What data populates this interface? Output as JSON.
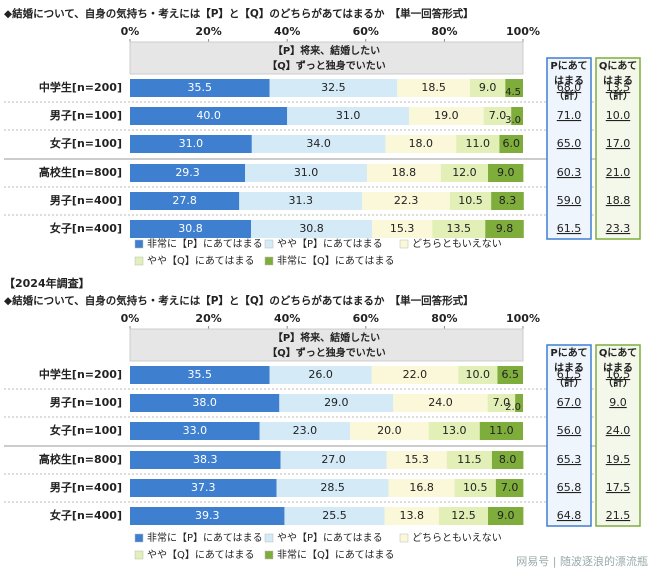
{
  "chart_data": [
    {
      "type": "bar",
      "stacked": true,
      "orientation": "horizontal",
      "title": "◆結婚について、自身の気持ち・考えには【P】と【Q】のどちらがあてはまるか　【単一回答形式】",
      "header": [
        "【P】将来、結婚したい",
        "【Q】ずっと独身でいたい"
      ],
      "categories": [
        "中学生[n=200]",
        "男子[n=100]",
        "女子[n=100]",
        "高校生[n=800]",
        "男子[n=400]",
        "女子[n=400]"
      ],
      "xlim": [
        0,
        100
      ],
      "xticks": [
        {
          "value": 0,
          "label": "0%"
        },
        {
          "value": 20,
          "label": "20%"
        },
        {
          "value": 40,
          "label": "40%"
        },
        {
          "value": 60,
          "label": "60%"
        },
        {
          "value": 80,
          "label": "80%"
        },
        {
          "value": 100,
          "label": "100%"
        }
      ],
      "series": [
        {
          "name": "非常に【P】にあてはまる",
          "color": "#3f7fd0",
          "values": [
            35.5,
            40.0,
            31.0,
            29.3,
            27.8,
            30.8
          ],
          "value_labels": [
            "35.5",
            "40.0",
            "31.0",
            "29.3",
            "27.8",
            "30.8"
          ]
        },
        {
          "name": "やや【P】にあてはまる",
          "color": "#d4eaf7",
          "values": [
            32.5,
            31.0,
            34.0,
            31.0,
            31.3,
            30.8
          ],
          "value_labels": [
            "32.5",
            "31.0",
            "34.0",
            "31.0",
            "31.3",
            "30.8"
          ]
        },
        {
          "name": "どちらともいえない",
          "color": "#fbf7d9",
          "values": [
            18.5,
            19.0,
            18.0,
            18.8,
            22.3,
            15.3
          ],
          "value_labels": [
            "18.5",
            "19.0",
            "18.0",
            "18.8",
            "22.3",
            "15.3"
          ]
        },
        {
          "name": "やや【Q】にあてはまる",
          "color": "#e2efb6",
          "values": [
            9.0,
            7.0,
            11.0,
            12.0,
            10.5,
            13.5
          ],
          "value_labels": [
            "9.0",
            "7.0",
            "11.0",
            "12.0",
            "10.5",
            "13.5"
          ]
        },
        {
          "name": "非常に【Q】にあてはまる",
          "color": "#7fad3c",
          "values": [
            4.5,
            3.0,
            6.0,
            9.0,
            8.3,
            9.8
          ],
          "value_labels": [
            "4.5",
            "3.0",
            "6.0",
            "9.0",
            "8.3",
            "9.8"
          ]
        }
      ],
      "totals": [
        {
          "title": [
            "Pにあて",
            "はまる",
            "（計）"
          ],
          "color": "#3f7fd0",
          "values": [
            68.0,
            71.0,
            65.0,
            60.3,
            59.0,
            61.5
          ],
          "value_labels": [
            "68.0",
            "71.0",
            "65.0",
            "60.3",
            "59.0",
            "61.5"
          ]
        },
        {
          "title": [
            "Qにあて",
            "はまる",
            "（計）"
          ],
          "color": "#7fad3c",
          "values": [
            13.5,
            10.0,
            17.0,
            21.0,
            18.8,
            23.3
          ],
          "value_labels": [
            "13.5",
            "10.0",
            "17.0",
            "21.0",
            "18.8",
            "23.3"
          ]
        }
      ]
    },
    {
      "type": "bar",
      "stacked": true,
      "orientation": "horizontal",
      "survey_label": "【2024年調査】",
      "title": "◆結婚について、自身の気持ち・考えには【P】と【Q】のどちらがあてはまるか　【単一回答形式】",
      "header": [
        "【P】将来、結婚したい",
        "【Q】ずっと独身でいたい"
      ],
      "categories": [
        "中学生[n=200]",
        "男子[n=100]",
        "女子[n=100]",
        "高校生[n=800]",
        "男子[n=400]",
        "女子[n=400]"
      ],
      "xlim": [
        0,
        100
      ],
      "xticks": [
        {
          "value": 0,
          "label": "0%"
        },
        {
          "value": 20,
          "label": "20%"
        },
        {
          "value": 40,
          "label": "40%"
        },
        {
          "value": 60,
          "label": "60%"
        },
        {
          "value": 80,
          "label": "80%"
        },
        {
          "value": 100,
          "label": "100%"
        }
      ],
      "series": [
        {
          "name": "非常に【P】にあてはまる",
          "color": "#3f7fd0",
          "values": [
            35.5,
            38.0,
            33.0,
            38.3,
            37.3,
            39.3
          ],
          "value_labels": [
            "35.5",
            "38.0",
            "33.0",
            "38.3",
            "37.3",
            "39.3"
          ]
        },
        {
          "name": "やや【P】にあてはまる",
          "color": "#d4eaf7",
          "values": [
            26.0,
            29.0,
            23.0,
            27.0,
            28.5,
            25.5
          ],
          "value_labels": [
            "26.0",
            "29.0",
            "23.0",
            "27.0",
            "28.5",
            "25.5"
          ]
        },
        {
          "name": "どちらともいえない",
          "color": "#fbf7d9",
          "values": [
            22.0,
            24.0,
            20.0,
            15.3,
            16.8,
            13.8
          ],
          "value_labels": [
            "22.0",
            "24.0",
            "20.0",
            "15.3",
            "16.8",
            "13.8"
          ]
        },
        {
          "name": "やや【Q】にあてはまる",
          "color": "#e2efb6",
          "values": [
            10.0,
            7.0,
            13.0,
            11.5,
            10.5,
            12.5
          ],
          "value_labels": [
            "10.0",
            "7.0",
            "13.0",
            "11.5",
            "10.5",
            "12.5"
          ]
        },
        {
          "name": "非常に【Q】にあてはまる",
          "color": "#7fad3c",
          "values": [
            6.5,
            2.0,
            11.0,
            8.0,
            7.0,
            9.0
          ],
          "value_labels": [
            "6.5",
            "2.0",
            "11.0",
            "8.0",
            "7.0",
            "9.0"
          ]
        }
      ],
      "totals": [
        {
          "title": [
            "Pにあて",
            "はまる",
            "（計）"
          ],
          "color": "#3f7fd0",
          "values": [
            61.5,
            67.0,
            56.0,
            65.3,
            65.8,
            64.8
          ],
          "value_labels": [
            "61.5",
            "67.0",
            "56.0",
            "65.3",
            "65.8",
            "64.8"
          ]
        },
        {
          "title": [
            "Qにあて",
            "はまる",
            "（計）"
          ],
          "color": "#7fad3c",
          "values": [
            16.5,
            9.0,
            24.0,
            19.5,
            17.5,
            21.5
          ],
          "value_labels": [
            "16.5",
            "9.0",
            "24.0",
            "19.5",
            "17.5",
            "21.5"
          ]
        }
      ]
    }
  ],
  "watermark": "网易号 | 随波逐浪的漂流瓶"
}
